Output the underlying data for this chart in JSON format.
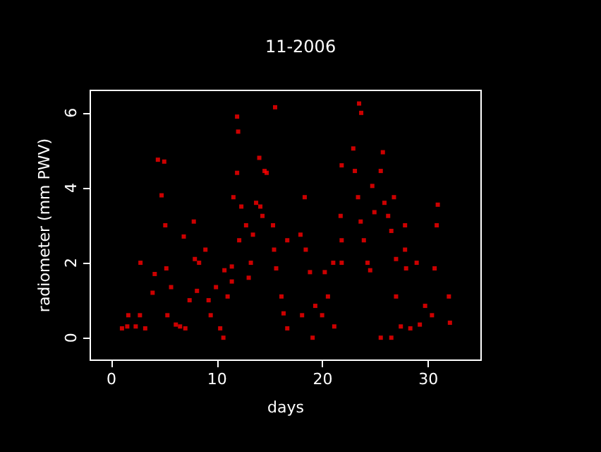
{
  "chart_data": {
    "type": "scatter",
    "title": "11-2006",
    "xlabel": "days",
    "ylabel": "radiometer (mm PWV)",
    "xlim": [
      -2,
      35
    ],
    "ylim": [
      -0.6,
      6.6
    ],
    "xticks": [
      0,
      10,
      20,
      30
    ],
    "yticks": [
      0,
      2,
      4,
      6
    ],
    "grid": false,
    "marker": "square",
    "series": [
      {
        "color": "#ff0000",
        "x": [
          1.0,
          1.5,
          2.3,
          1.6,
          2.75,
          2.7,
          3.2,
          3.9,
          4.1,
          4.4,
          4.75,
          5.0,
          5.1,
          5.2,
          5.3,
          5.65,
          6.1,
          6.5,
          6.85,
          7.0,
          7.4,
          7.8,
          7.9,
          8.1,
          8.3,
          8.9,
          9.2,
          9.4,
          9.9,
          10.3,
          10.6,
          10.7,
          11.0,
          11.4,
          11.4,
          11.55,
          11.9,
          12.0,
          11.9,
          12.1,
          12.3,
          12.75,
          13.0,
          13.2,
          13.4,
          13.7,
          14.0,
          14.1,
          14.3,
          14.5,
          14.7,
          15.3,
          15.4,
          15.5,
          15.6,
          16.1,
          16.3,
          16.65,
          16.65,
          17.9,
          18.05,
          18.3,
          18.4,
          18.8,
          19.05,
          19.3,
          19.95,
          20.2,
          20.5,
          21.0,
          21.1,
          21.7,
          21.8,
          21.8,
          21.8,
          22.9,
          23.05,
          23.35,
          23.45,
          23.6,
          23.65,
          23.9,
          24.25,
          24.5,
          24.7,
          24.9,
          25.5,
          25.5,
          25.7,
          25.85,
          26.2,
          26.5,
          26.5,
          26.75,
          26.95,
          26.95,
          27.4,
          27.8,
          27.8,
          27.9,
          28.3,
          28.9,
          29.2,
          29.7,
          30.35,
          30.6,
          30.8,
          30.9,
          31.95,
          32.05
        ],
        "values": [
          0.25,
          0.3,
          0.3,
          0.6,
          2.0,
          0.6,
          0.25,
          1.2,
          1.7,
          4.75,
          3.8,
          4.7,
          3.0,
          1.85,
          0.6,
          1.35,
          0.35,
          0.3,
          2.7,
          0.25,
          1.0,
          3.1,
          2.1,
          1.25,
          2.0,
          2.35,
          1.0,
          0.6,
          1.35,
          0.25,
          0.0,
          1.8,
          1.1,
          1.9,
          1.5,
          3.75,
          5.9,
          5.5,
          4.4,
          2.6,
          3.5,
          3.0,
          1.6,
          2.0,
          2.75,
          3.6,
          4.8,
          3.5,
          3.25,
          4.45,
          4.4,
          3.0,
          2.35,
          6.15,
          1.85,
          1.1,
          0.65,
          2.6,
          0.25,
          2.75,
          0.6,
          3.75,
          2.35,
          1.75,
          0.0,
          0.85,
          0.6,
          1.75,
          1.1,
          2.0,
          0.3,
          3.25,
          2.6,
          2.0,
          4.6,
          5.05,
          4.45,
          3.75,
          6.25,
          3.1,
          6.0,
          2.6,
          2.0,
          1.8,
          4.05,
          3.35,
          0.0,
          4.45,
          4.95,
          3.6,
          3.25,
          0.0,
          2.85,
          3.75,
          2.1,
          1.1,
          0.3,
          3.0,
          2.35,
          1.85,
          0.25,
          2.0,
          0.35,
          0.85,
          0.6,
          1.85,
          3.0,
          3.55,
          1.1,
          0.4
        ]
      }
    ]
  }
}
